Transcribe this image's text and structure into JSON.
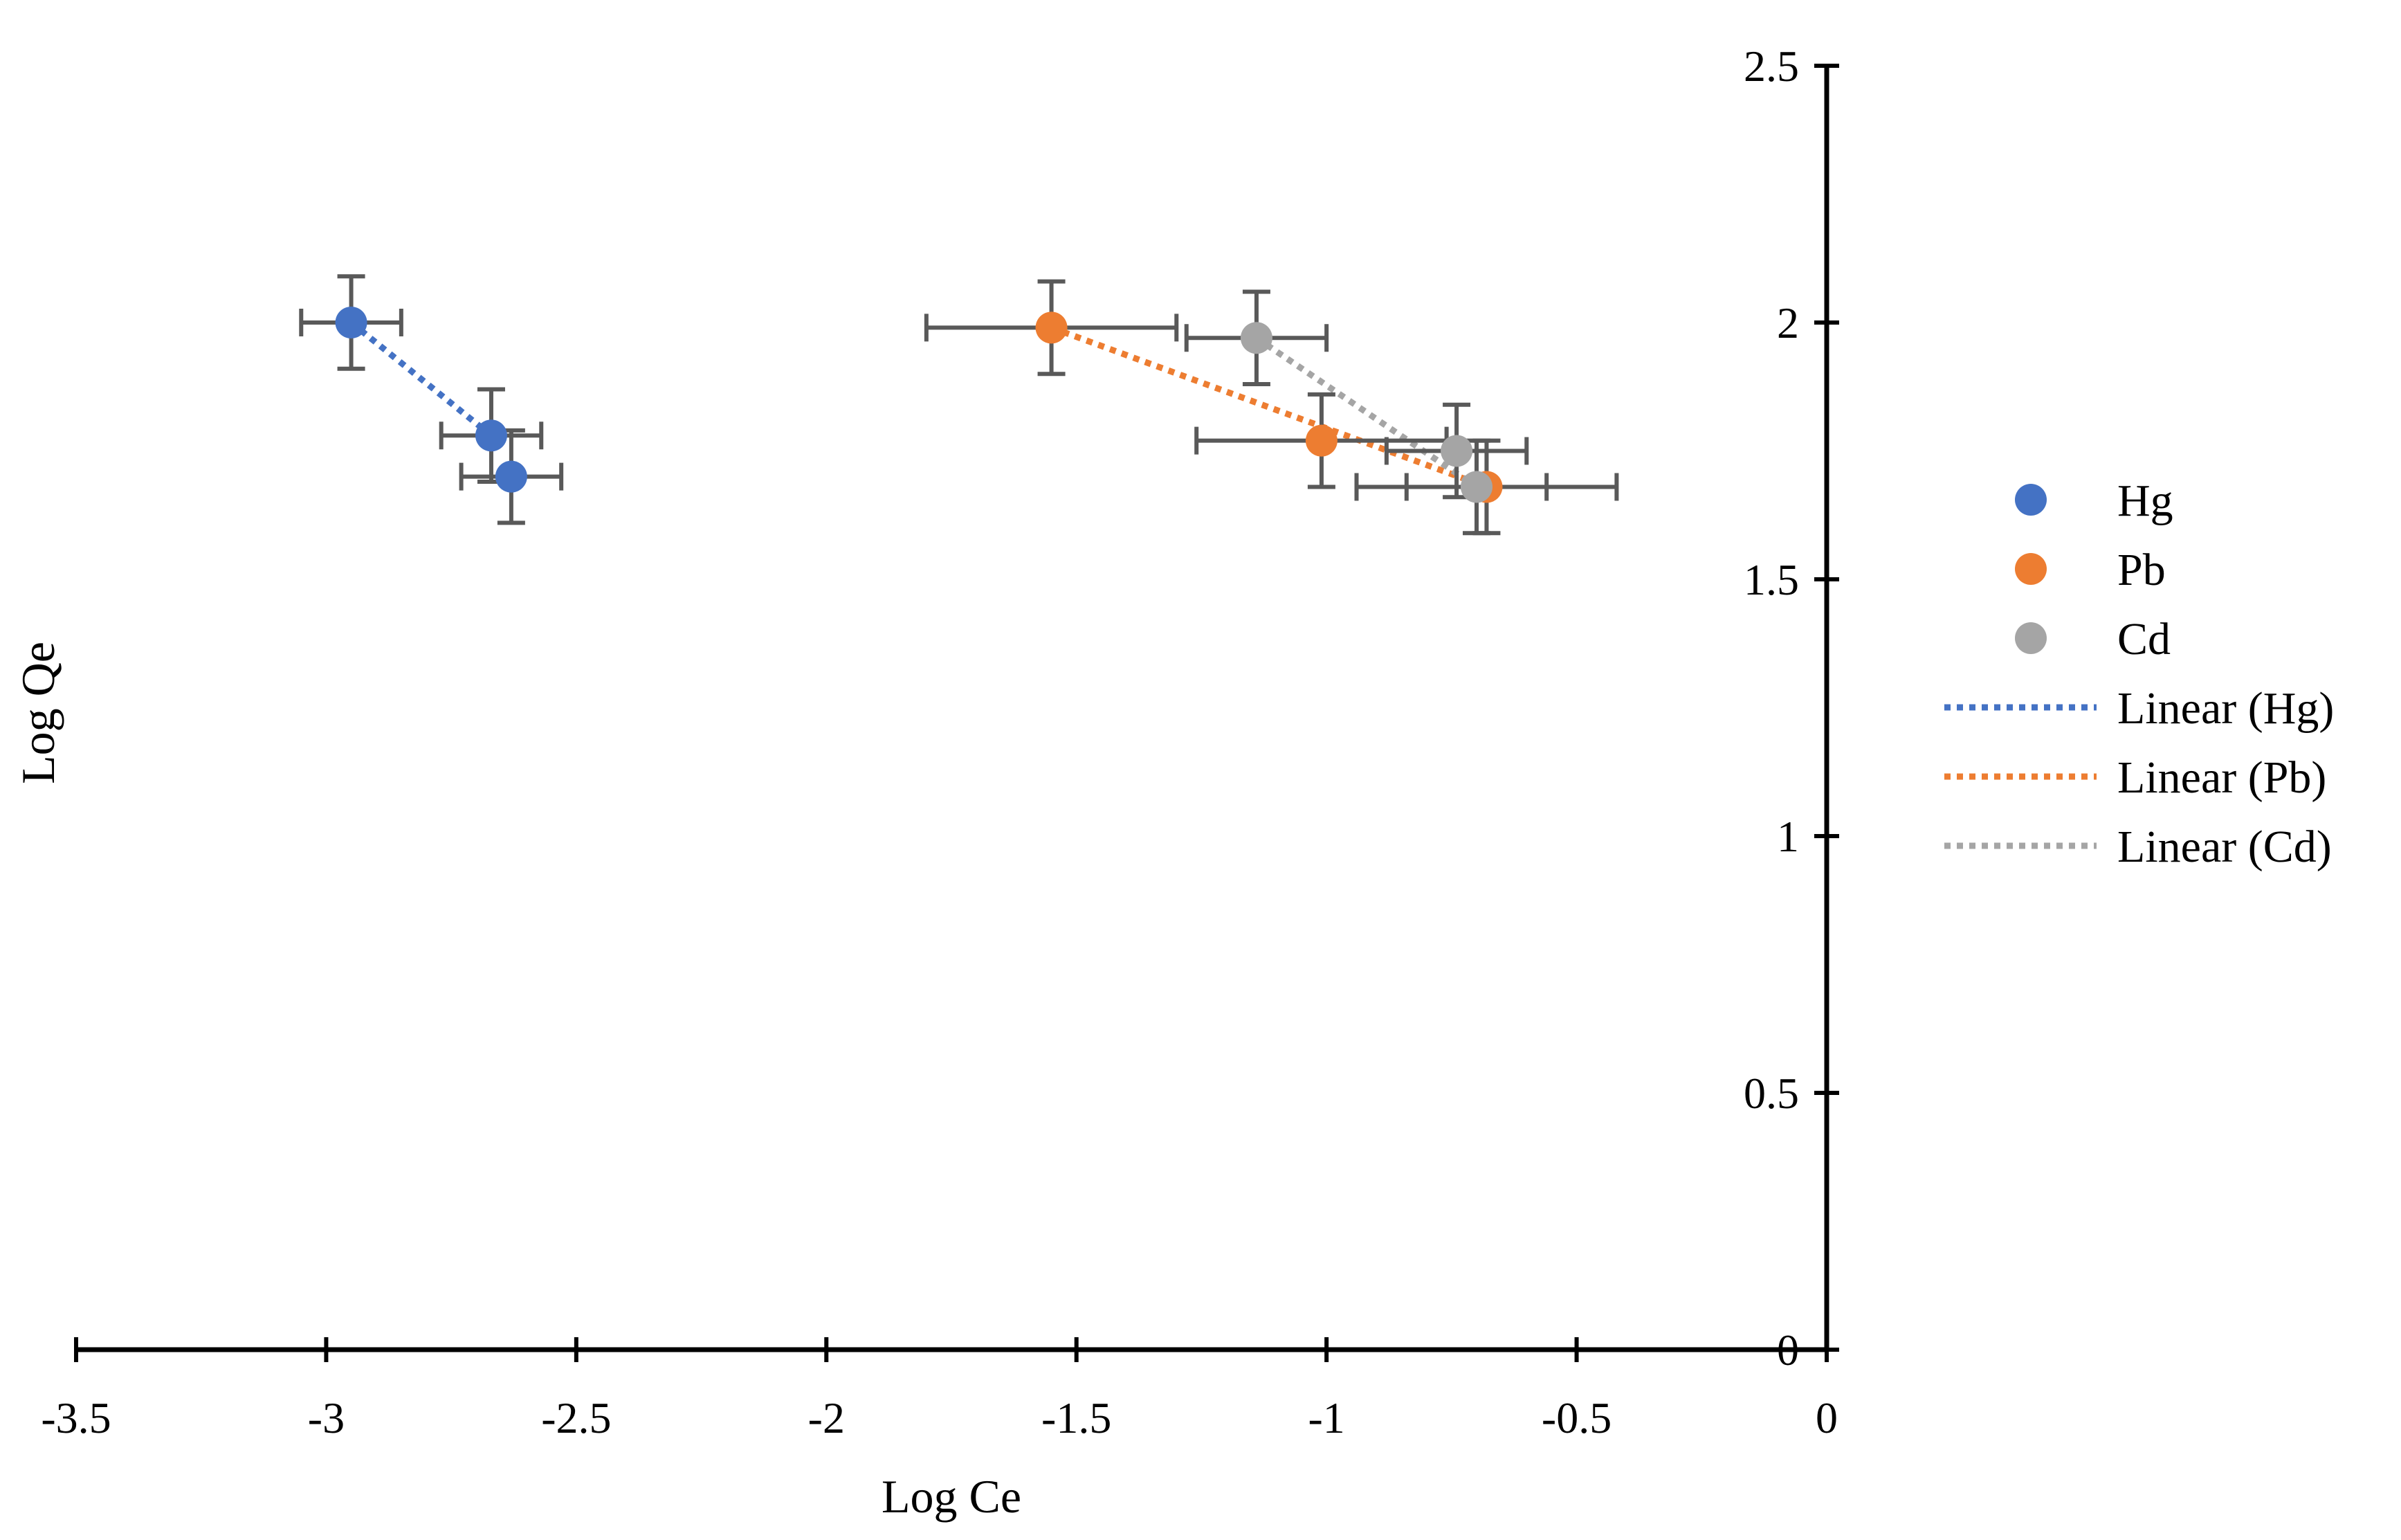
{
  "chart_data": {
    "type": "scatter",
    "xlabel": "Log Ce",
    "ylabel": "Log Qe",
    "xlim": [
      -3.5,
      0
    ],
    "ylim": [
      0,
      2.5
    ],
    "x_ticks": [
      -3.5,
      -3,
      -2.5,
      -2,
      -1.5,
      -1,
      -0.5,
      0
    ],
    "x_tick_labels": [
      "-3.5",
      "-3",
      "-2.5",
      "-2",
      "-1.5",
      "-1",
      "-0.5",
      "0"
    ],
    "y_ticks": [
      0,
      0.5,
      1,
      1.5,
      2,
      2.5
    ],
    "y_tick_labels": [
      "0",
      "0.5",
      "1",
      "1.5",
      "2",
      "2.5"
    ],
    "grid": false,
    "legend_position": "right",
    "series": [
      {
        "name": "Hg",
        "trend_name": "Linear (Hg)",
        "color": "#4472C4",
        "x": [
          -2.95,
          -2.67,
          -2.63
        ],
        "y": [
          2.0,
          1.78,
          1.7
        ],
        "x_err": [
          0.1,
          0.1,
          0.1
        ],
        "y_err": [
          0.09,
          0.09,
          0.09
        ],
        "trend": [
          [
            -2.95,
            2.0
          ],
          [
            -2.67,
            1.78
          ]
        ]
      },
      {
        "name": "Pb",
        "trend_name": "Linear (Pb)",
        "color": "#ED7D31",
        "x": [
          -1.55,
          -1.01,
          -0.68
        ],
        "y": [
          1.99,
          1.77,
          1.68
        ],
        "x_err": [
          0.25,
          0.25,
          0.26
        ],
        "y_err": [
          0.09,
          0.09,
          0.09
        ],
        "trend": [
          [
            -1.55,
            1.99
          ],
          [
            -0.68,
            1.68
          ]
        ]
      },
      {
        "name": "Cd",
        "trend_name": "Linear (Cd)",
        "color": "#A5A5A5",
        "x": [
          -1.14,
          -0.74,
          -0.7
        ],
        "y": [
          1.97,
          1.75,
          1.68
        ],
        "x_err": [
          0.14,
          0.14,
          0.14
        ],
        "y_err": [
          0.09,
          0.09,
          0.09
        ],
        "trend": [
          [
            -1.14,
            1.97
          ],
          [
            -0.7,
            1.68
          ]
        ]
      }
    ]
  }
}
